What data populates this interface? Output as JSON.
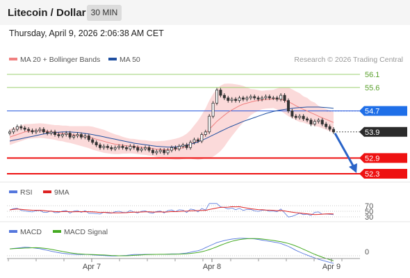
{
  "header": {
    "title": "Litecoin / Dollar",
    "timeframe": "30 MIN"
  },
  "datetime": "Thursday, April 9, 2026 2:06:38 AM CET",
  "legend": {
    "ma20_label": "MA 20 + Bollinger Bands",
    "ma50_label": "MA 50",
    "ma20_color": "#f08080",
    "ma50_color": "#1f4fa0",
    "copyright": "Research © 2026 Trading Central"
  },
  "price_levels": [
    {
      "value": 56.1,
      "label": "56.1",
      "style": "resistance-green"
    },
    {
      "value": 55.6,
      "label": "55.6",
      "style": "resistance-green"
    },
    {
      "value": 54.7,
      "label": "54.7",
      "style": "pivot-blue"
    },
    {
      "value": 53.9,
      "label": "53.9",
      "style": "current-black"
    },
    {
      "value": 52.9,
      "label": "52.9",
      "style": "support-red"
    },
    {
      "value": 52.3,
      "label": "52.3",
      "style": "support-red"
    }
  ],
  "rsi_panel": {
    "rsi_label": "RSI",
    "ma_label": "9MA",
    "rsi_color": "#5577dd",
    "ma_color": "#dd2222",
    "levels": [
      "70",
      "50",
      "30"
    ]
  },
  "macd_panel": {
    "macd_label": "MACD",
    "signal_label": "MACD Signal",
    "macd_color": "#5577dd",
    "signal_color": "#44aa22",
    "zero_label": "0"
  },
  "x_axis": {
    "labels": [
      "Apr 7",
      "Apr 8",
      "Apr 9"
    ]
  },
  "chart_data": {
    "type": "candlestick",
    "ylim": [
      52.2,
      56.5
    ],
    "close": [
      53.9,
      54.0,
      54.1,
      54.05,
      54.0,
      53.95,
      53.9,
      53.95,
      54.0,
      53.9,
      53.85,
      53.9,
      53.8,
      53.75,
      53.8,
      53.85,
      53.7,
      53.75,
      53.8,
      53.7,
      53.75,
      53.6,
      53.5,
      53.4,
      53.3,
      53.35,
      53.3,
      53.25,
      53.3,
      53.35,
      53.3,
      53.25,
      53.35,
      53.3,
      53.2,
      53.25,
      53.3,
      53.2,
      53.1,
      53.15,
      53.2,
      53.1,
      53.2,
      53.3,
      53.25,
      53.35,
      53.4,
      53.3,
      53.5,
      53.6,
      53.55,
      53.8,
      53.9,
      54.5,
      55.0,
      55.5,
      55.3,
      55.2,
      55.1,
      55.15,
      55.1,
      55.2,
      55.15,
      55.2,
      55.25,
      55.2,
      55.15,
      55.2,
      55.25,
      55.2,
      55.2,
      55.15,
      55.3,
      55.1,
      54.7,
      54.5,
      54.45,
      54.5,
      54.4,
      54.35,
      54.2,
      54.3,
      54.35,
      54.2,
      54.1,
      54.0,
      53.9
    ],
    "ma20": [
      53.7,
      53.75,
      53.8,
      53.85,
      53.9,
      53.92,
      53.93,
      53.94,
      53.95,
      53.94,
      53.92,
      53.9,
      53.88,
      53.86,
      53.84,
      53.82,
      53.8,
      53.78,
      53.76,
      53.74,
      53.72,
      53.7,
      53.66,
      53.62,
      53.58,
      53.54,
      53.5,
      53.46,
      53.43,
      53.41,
      53.39,
      53.37,
      53.36,
      53.35,
      53.33,
      53.31,
      53.3,
      53.28,
      53.26,
      53.24,
      53.23,
      53.22,
      53.22,
      53.23,
      53.24,
      53.26,
      53.3,
      53.35,
      53.42,
      53.5,
      53.58,
      53.7,
      53.85,
      54.0,
      54.15,
      54.3,
      54.42,
      54.54,
      54.65,
      54.74,
      54.82,
      54.9,
      54.96,
      55.0,
      55.04,
      55.08,
      55.1,
      55.12,
      55.14,
      55.15,
      55.16,
      55.16,
      55.15,
      55.1,
      55.05,
      54.98,
      54.9,
      54.83,
      54.76,
      54.7,
      54.63,
      54.57,
      54.5,
      54.44,
      54.38,
      54.32,
      54.26
    ],
    "ma50": [
      53.55,
      53.58,
      53.61,
      53.64,
      53.67,
      53.7,
      53.73,
      53.76,
      53.79,
      53.82,
      53.84,
      53.86,
      53.88,
      53.89,
      53.9,
      53.9,
      53.9,
      53.89,
      53.88,
      53.86,
      53.84,
      53.82,
      53.8,
      53.77,
      53.74,
      53.71,
      53.68,
      53.65,
      53.62,
      53.59,
      53.56,
      53.53,
      53.5,
      53.47,
      53.45,
      53.43,
      53.41,
      53.39,
      53.37,
      53.35,
      53.34,
      53.33,
      53.32,
      53.32,
      53.33,
      53.35,
      53.37,
      53.4,
      53.43,
      53.47,
      53.52,
      53.58,
      53.64,
      53.71,
      53.78,
      53.85,
      53.92,
      53.99,
      54.06,
      54.12,
      54.18,
      54.24,
      54.3,
      54.35,
      54.4,
      54.45,
      54.5,
      54.55,
      54.6,
      54.64,
      54.68,
      54.71,
      54.74,
      54.76,
      54.78,
      54.8,
      54.82,
      54.83,
      54.84,
      54.85,
      54.85,
      54.85,
      54.85,
      54.84,
      54.83,
      54.82,
      54.8
    ],
    "band_width": [
      0.3,
      0.3,
      0.3,
      0.3,
      0.3,
      0.28,
      0.28,
      0.28,
      0.28,
      0.28,
      0.28,
      0.28,
      0.28,
      0.3,
      0.3,
      0.32,
      0.32,
      0.34,
      0.36,
      0.38,
      0.4,
      0.42,
      0.44,
      0.44,
      0.44,
      0.44,
      0.42,
      0.4,
      0.38,
      0.36,
      0.32,
      0.3,
      0.28,
      0.28,
      0.28,
      0.28,
      0.28,
      0.28,
      0.28,
      0.3,
      0.32,
      0.34,
      0.36,
      0.38,
      0.4,
      0.42,
      0.44,
      0.48,
      0.55,
      0.65,
      0.75,
      0.85,
      0.95,
      1.1,
      1.2,
      1.25,
      1.25,
      1.2,
      1.1,
      1.0,
      0.9,
      0.8,
      0.7,
      0.6,
      0.5,
      0.45,
      0.4,
      0.35,
      0.35,
      0.35,
      0.35,
      0.4,
      0.45,
      0.5,
      0.55,
      0.55,
      0.55,
      0.55,
      0.5,
      0.5,
      0.45,
      0.45,
      0.4,
      0.4,
      0.4,
      0.4,
      0.4
    ],
    "forecast_target": 52.3
  }
}
